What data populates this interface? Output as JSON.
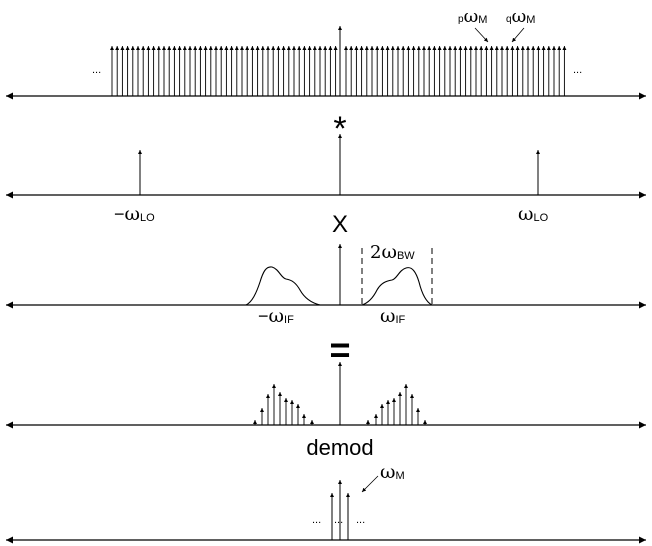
{
  "row1": {
    "dots_left": "...",
    "dots_right": "...",
    "label_p": "p",
    "label_p_omega": "ω",
    "label_p_sub": "M",
    "label_q": "q",
    "label_q_omega": "ω",
    "label_q_sub": "M"
  },
  "op_convolve": "*",
  "row2": {
    "neg_lo_minus": "−",
    "neg_lo_omega": "ω",
    "neg_lo_sub": "LO",
    "pos_lo_omega": "ω",
    "pos_lo_sub": "LO"
  },
  "op_multiply": "X",
  "row3": {
    "bw_prefix": "2",
    "bw_omega": "ω",
    "bw_sub": "BW",
    "neg_if_minus": "−",
    "neg_if_omega": "ω",
    "neg_if_sub": "IF",
    "pos_if_omega": "ω",
    "pos_if_sub": "IF"
  },
  "op_equals": "=",
  "row4_label": "demod",
  "row5": {
    "omega_m_omega": "ω",
    "omega_m_sub": "M",
    "dots": [
      "...",
      "...",
      "..."
    ]
  }
}
